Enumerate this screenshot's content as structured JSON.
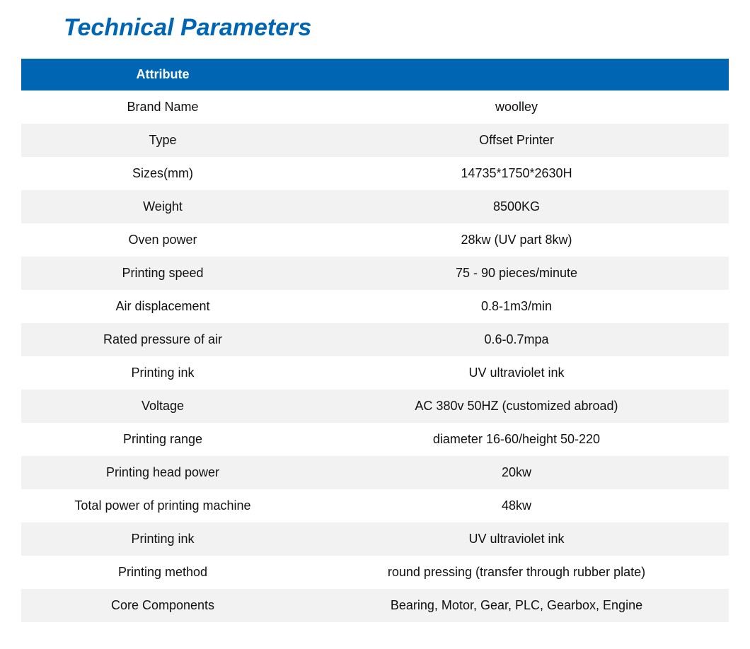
{
  "title": "Technical Parameters",
  "table": {
    "type": "table",
    "header_bg": "#0066b3",
    "header_fg": "#ffffff",
    "row_bg_even": "#ffffff",
    "row_bg_odd": "#f2f2f2",
    "text_color": "#111111",
    "title_color": "#0066b3",
    "title_fontsize": 34,
    "cell_fontsize": 18,
    "columns": [
      "Attribute",
      ""
    ],
    "rows": [
      {
        "attr": "Brand Name",
        "value": "woolley"
      },
      {
        "attr": "Type",
        "value": "Offset Printer"
      },
      {
        "attr": "Sizes(mm)",
        "value": "14735*1750*2630H"
      },
      {
        "attr": "Weight",
        "value": "8500KG"
      },
      {
        "attr": "Oven power",
        "value": "28kw (UV part 8kw)"
      },
      {
        "attr": "Printing speed",
        "value": "75 - 90 pieces/minute"
      },
      {
        "attr": "Air displacement",
        "value": "0.8-1m3/min"
      },
      {
        "attr": "Rated pressure of air",
        "value": "0.6-0.7mpa"
      },
      {
        "attr": "Printing ink",
        "value": "UV ultraviolet ink"
      },
      {
        "attr": "Voltage",
        "value": "AC 380v 50HZ (customized abroad)"
      },
      {
        "attr": "Printing range",
        "value": "diameter 16-60/height 50-220"
      },
      {
        "attr": "Printing head power",
        "value": "20kw"
      },
      {
        "attr": "Total power of printing machine",
        "value": "48kw"
      },
      {
        "attr": "Printing ink",
        "value": "UV ultraviolet ink"
      },
      {
        "attr": "Printing method",
        "value": "round pressing (transfer through rubber plate)"
      },
      {
        "attr": "Core Components",
        "value": "Bearing, Motor, Gear, PLC,  Gearbox, Engine"
      }
    ]
  }
}
